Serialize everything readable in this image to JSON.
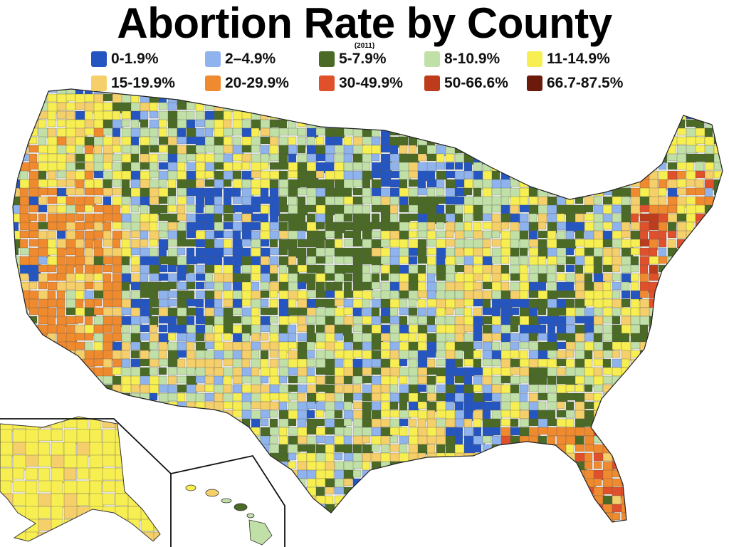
{
  "title": "Abortion Rate by County",
  "subtitle": "(2011)",
  "legend": [
    {
      "label": "0-1.9%",
      "color": "#2455c1"
    },
    {
      "label": "2–4.9%",
      "color": "#8fb3ec"
    },
    {
      "label": "5-7.9%",
      "color": "#4a6a25"
    },
    {
      "label": "8-10.9%",
      "color": "#c1e0a8"
    },
    {
      "label": "11-14.9%",
      "color": "#f7ee52"
    },
    {
      "label": "15-19.9%",
      "color": "#f5cf69"
    },
    {
      "label": "20-29.9%",
      "color": "#ef8a2f"
    },
    {
      "label": "30-49.9%",
      "color": "#e0502a"
    },
    {
      "label": "50-66.6%",
      "color": "#bd3c1b"
    },
    {
      "label": "66.7-87.5%",
      "color": "#6b1a0b"
    }
  ]
}
